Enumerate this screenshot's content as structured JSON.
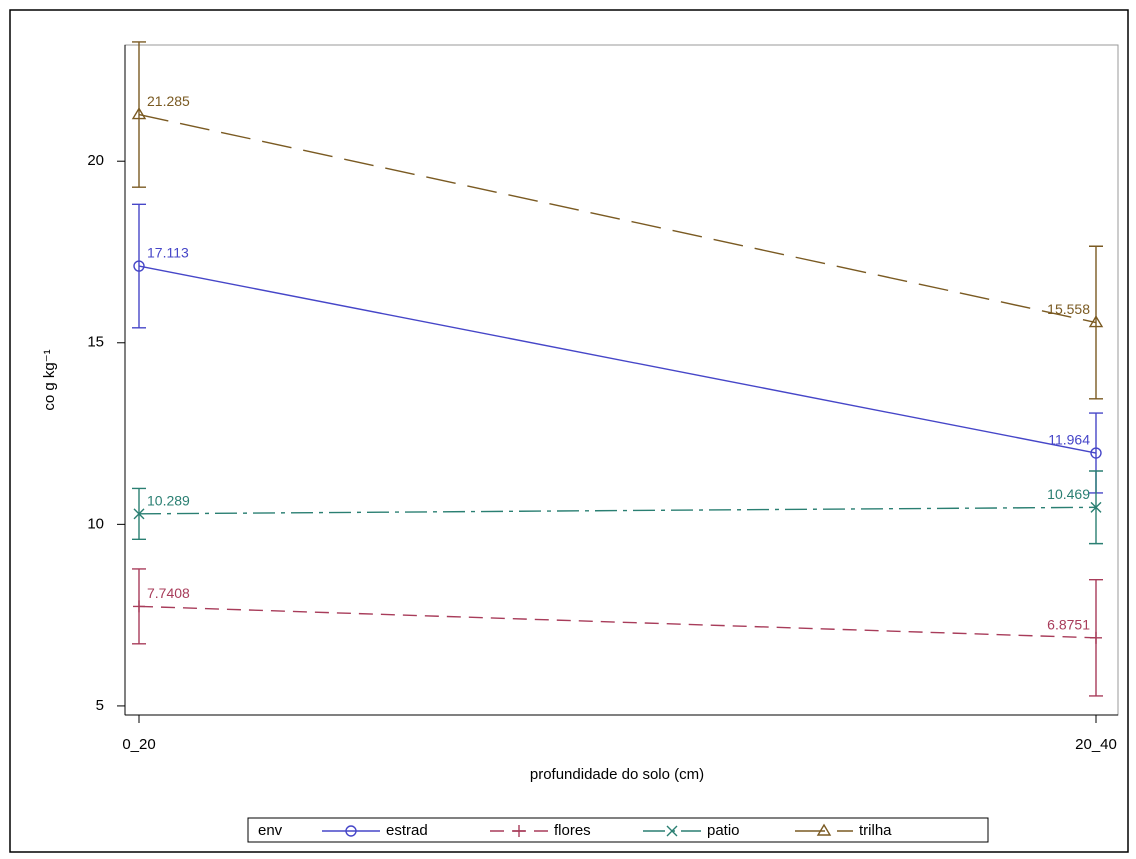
{
  "chart_data": {
    "type": "line",
    "y_label": "co   g kg⁻¹",
    "x_label": "profundidade do solo (cm)",
    "legend_title": "env",
    "categories": [
      "0_20",
      "20_40"
    ],
    "ylim": [
      4.75,
      23.2
    ],
    "yticks": [
      5,
      10,
      15,
      20
    ],
    "series": [
      {
        "name": "estrad",
        "color": "#4646c8",
        "style": "solid",
        "marker": "circle",
        "values": [
          17.113,
          11.964
        ],
        "errors": [
          1.7,
          1.1
        ]
      },
      {
        "name": "flores",
        "color": "#a83c5a",
        "style": "dash",
        "marker": "plus",
        "values": [
          7.7408,
          6.8751
        ],
        "errors": [
          1.03,
          1.6
        ]
      },
      {
        "name": "patio",
        "color": "#2a7f72",
        "style": "dashdot",
        "marker": "x",
        "values": [
          10.289,
          10.469
        ],
        "errors": [
          0.7,
          1.0
        ]
      },
      {
        "name": "trilha",
        "color": "#7a5a22",
        "style": "longdash",
        "marker": "triangle",
        "values": [
          21.285,
          15.558
        ],
        "errors": [
          2.0,
          2.1
        ]
      }
    ]
  }
}
